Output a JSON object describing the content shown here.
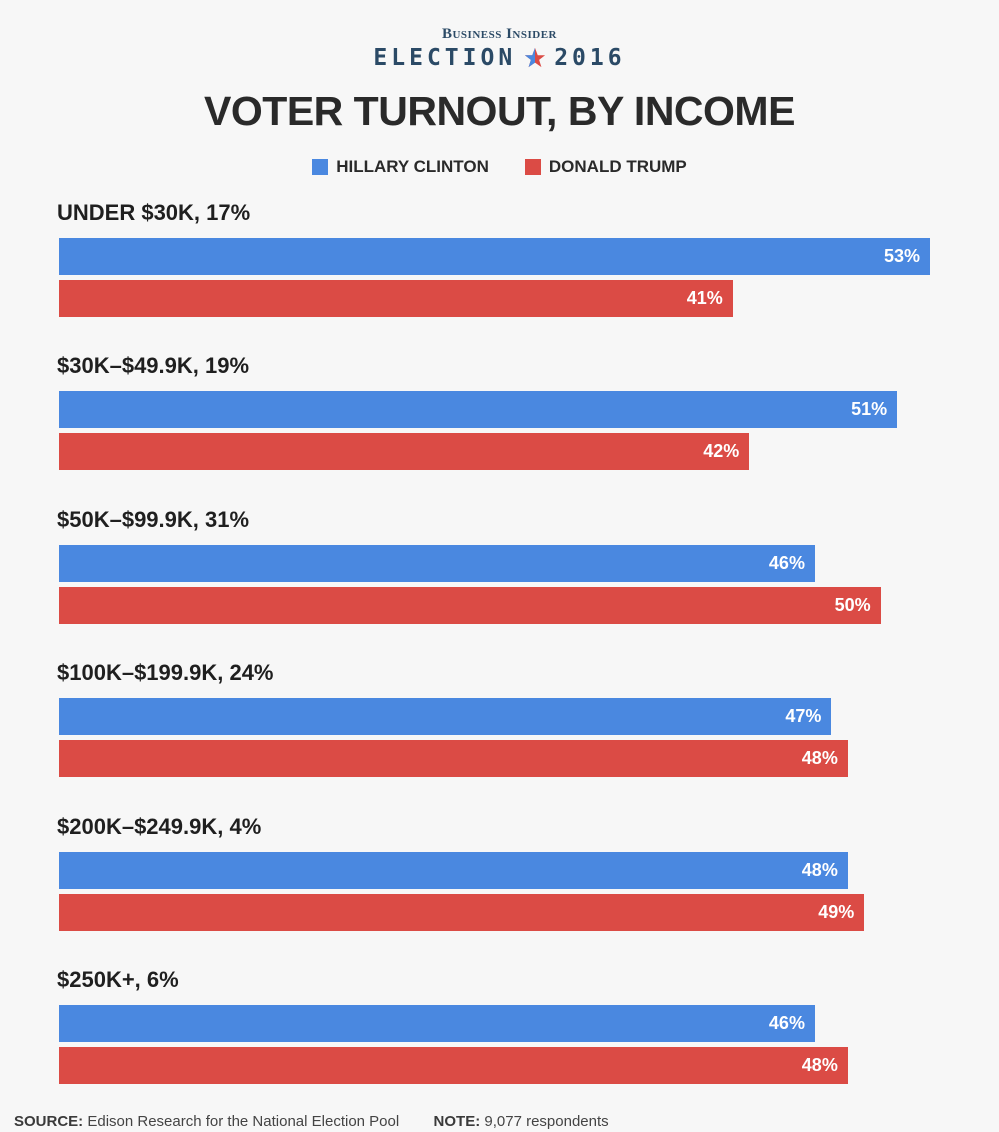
{
  "brand": {
    "top": "Business Insider",
    "election": "ELECTION",
    "year": "2016"
  },
  "colors": {
    "clinton": "#4a88e0",
    "trump": "#db4b45"
  },
  "legend": {
    "clinton": "HILLARY CLINTON",
    "trump": "DONALD TRUMP"
  },
  "footer": {
    "source_label": "SOURCE:",
    "source_text": "Edison Research for the National Election Pool",
    "note_label": "NOTE:",
    "note_text": "9,077 respondents"
  },
  "chart_data": {
    "type": "bar",
    "orientation": "horizontal",
    "title": "VOTER TURNOUT, BY INCOME",
    "categories": [
      "UNDER $30K, 17%",
      "$30K–$49.9K, 19%",
      "$50K–$99.9K, 31%",
      "$100K–$199.9K, 24%",
      "$200K–$249.9K, 4%",
      "$250K+, 6%"
    ],
    "series": [
      {
        "name": "HILLARY CLINTON",
        "values": [
          53,
          51,
          46,
          47,
          48,
          46
        ]
      },
      {
        "name": "DONALD TRUMP",
        "values": [
          41,
          42,
          50,
          48,
          49,
          48
        ]
      }
    ],
    "value_suffix": "%",
    "xlim": [
      0,
      53
    ]
  }
}
